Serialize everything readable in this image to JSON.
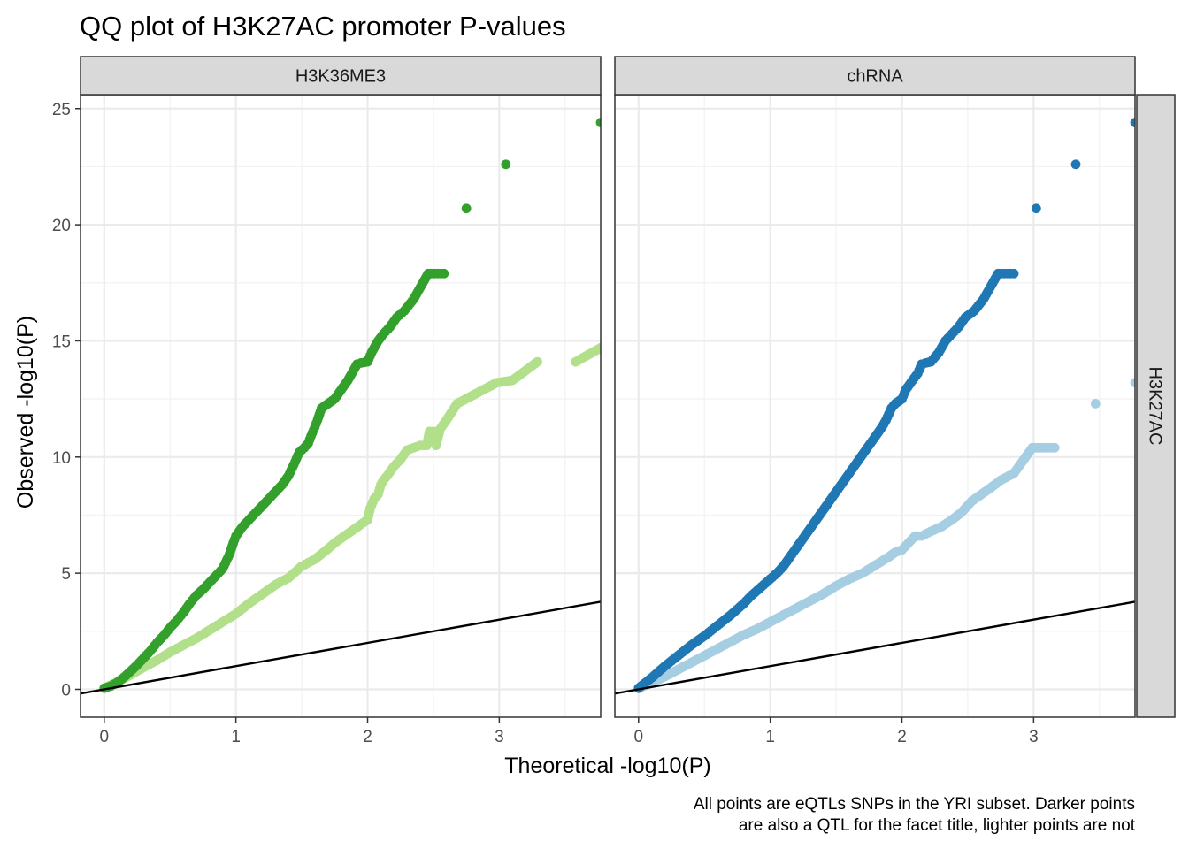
{
  "chart_data": {
    "type": "scatter",
    "title": "QQ plot of H3K27AC promoter P-values",
    "xlabel": "Theoretical -log10(P)",
    "ylabel": "Observed -log10(P)",
    "caption_lines": [
      "All points are eQTLs SNPs in the YRI subset. Darker points",
      "are also a QTL for the facet title, lighter points are not"
    ],
    "xlim": [
      -0.18,
      3.77
    ],
    "ylim": [
      -1.2,
      25.6
    ],
    "x_ticks": [
      0,
      1,
      2,
      3
    ],
    "y_ticks": [
      0,
      5,
      10,
      15,
      20,
      25
    ],
    "grid": true,
    "reference_line": {
      "intercept": 0,
      "slope": 1,
      "color": "#000000"
    },
    "row_strip": "H3K27AC",
    "panels": [
      {
        "strip": "H3K36ME3",
        "series": [
          {
            "role": "light",
            "color": "#b2df8a",
            "points": [
              [
                3.77,
                14.7
              ],
              [
                3.58,
                14.1
              ],
              [
                3.29,
                14.1
              ],
              [
                3.1,
                13.3
              ],
              [
                2.98,
                13.2
              ],
              [
                2.88,
                12.9
              ],
              [
                2.78,
                12.6
              ],
              [
                2.68,
                12.3
              ],
              [
                2.6,
                11.6
              ],
              [
                2.55,
                11.2
              ],
              [
                2.5,
                11.1
              ],
              [
                2.47,
                11.1
              ],
              [
                2.52,
                10.5
              ],
              [
                2.45,
                10.5
              ],
              [
                2.4,
                10.5
              ],
              [
                2.35,
                10.4
              ],
              [
                2.3,
                10.3
              ],
              [
                2.25,
                9.9
              ],
              [
                2.2,
                9.6
              ],
              [
                2.15,
                9.2
              ],
              [
                2.12,
                9.0
              ],
              [
                2.1,
                8.8
              ],
              [
                2.08,
                8.4
              ],
              [
                2.05,
                8.2
              ],
              [
                2.02,
                7.8
              ],
              [
                2.0,
                7.3
              ],
              [
                1.95,
                7.1
              ],
              [
                1.9,
                6.9
              ],
              [
                1.85,
                6.7
              ],
              [
                1.8,
                6.5
              ],
              [
                1.75,
                6.3
              ],
              [
                1.7,
                6.05
              ],
              [
                1.6,
                5.6
              ],
              [
                1.55,
                5.45
              ],
              [
                1.5,
                5.3
              ],
              [
                1.45,
                5.05
              ],
              [
                1.4,
                4.8
              ],
              [
                1.3,
                4.5
              ],
              [
                1.2,
                4.1
              ],
              [
                1.1,
                3.7
              ],
              [
                1.0,
                3.25
              ],
              [
                0.9,
                2.9
              ],
              [
                0.8,
                2.55
              ],
              [
                0.7,
                2.2
              ],
              [
                0.6,
                1.9
              ],
              [
                0.5,
                1.6
              ],
              [
                0.4,
                1.25
              ],
              [
                0.3,
                0.95
              ],
              [
                0.2,
                0.62
              ],
              [
                0.1,
                0.32
              ],
              [
                0.0,
                0.05
              ]
            ]
          },
          {
            "role": "dark",
            "color": "#33a02c",
            "points": [
              [
                3.77,
                24.4
              ],
              [
                3.05,
                22.6
              ],
              [
                2.75,
                20.7
              ],
              [
                2.58,
                17.9
              ],
              [
                2.46,
                17.9
              ],
              [
                2.35,
                16.8
              ],
              [
                2.28,
                16.3
              ],
              [
                2.22,
                16.0
              ],
              [
                2.17,
                15.6
              ],
              [
                2.12,
                15.3
              ],
              [
                2.08,
                15.0
              ],
              [
                2.03,
                14.5
              ],
              [
                2.0,
                14.1
              ],
              [
                1.95,
                14.05
              ],
              [
                1.92,
                14.0
              ],
              [
                1.88,
                13.6
              ],
              [
                1.85,
                13.3
              ],
              [
                1.8,
                12.9
              ],
              [
                1.75,
                12.5
              ],
              [
                1.7,
                12.3
              ],
              [
                1.65,
                12.1
              ],
              [
                1.62,
                11.6
              ],
              [
                1.6,
                11.3
              ],
              [
                1.57,
                10.9
              ],
              [
                1.55,
                10.6
              ],
              [
                1.52,
                10.4
              ],
              [
                1.48,
                10.2
              ],
              [
                1.45,
                9.8
              ],
              [
                1.4,
                9.2
              ],
              [
                1.35,
                8.8
              ],
              [
                1.3,
                8.5
              ],
              [
                1.25,
                8.2
              ],
              [
                1.2,
                7.9
              ],
              [
                1.15,
                7.6
              ],
              [
                1.1,
                7.3
              ],
              [
                1.05,
                7.0
              ],
              [
                1.0,
                6.6
              ],
              [
                0.98,
                6.3
              ],
              [
                0.95,
                5.8
              ],
              [
                0.9,
                5.2
              ],
              [
                0.85,
                4.9
              ],
              [
                0.8,
                4.6
              ],
              [
                0.75,
                4.3
              ],
              [
                0.7,
                4.05
              ],
              [
                0.65,
                3.7
              ],
              [
                0.6,
                3.3
              ],
              [
                0.55,
                2.95
              ],
              [
                0.5,
                2.65
              ],
              [
                0.45,
                2.3
              ],
              [
                0.4,
                2.0
              ],
              [
                0.35,
                1.65
              ],
              [
                0.3,
                1.35
              ],
              [
                0.25,
                1.05
              ],
              [
                0.2,
                0.78
              ],
              [
                0.15,
                0.52
              ],
              [
                0.1,
                0.3
              ],
              [
                0.05,
                0.14
              ],
              [
                0.0,
                0.05
              ]
            ]
          }
        ]
      },
      {
        "strip": "chRNA",
        "series": [
          {
            "role": "light",
            "color": "#a6cee3",
            "points": [
              [
                3.77,
                13.2
              ],
              [
                3.47,
                12.3
              ],
              [
                3.16,
                10.4
              ],
              [
                2.99,
                10.4
              ],
              [
                2.85,
                9.3
              ],
              [
                2.75,
                9.0
              ],
              [
                2.68,
                8.7
              ],
              [
                2.63,
                8.5
              ],
              [
                2.58,
                8.3
              ],
              [
                2.53,
                8.1
              ],
              [
                2.45,
                7.6
              ],
              [
                2.38,
                7.3
              ],
              [
                2.3,
                7.0
              ],
              [
                2.22,
                6.8
              ],
              [
                2.15,
                6.6
              ],
              [
                2.1,
                6.6
              ],
              [
                2.05,
                6.3
              ],
              [
                2.0,
                6.0
              ],
              [
                1.95,
                5.9
              ],
              [
                1.9,
                5.7
              ],
              [
                1.8,
                5.35
              ],
              [
                1.7,
                5.0
              ],
              [
                1.6,
                4.75
              ],
              [
                1.5,
                4.45
              ],
              [
                1.4,
                4.1
              ],
              [
                1.3,
                3.8
              ],
              [
                1.2,
                3.5
              ],
              [
                1.1,
                3.2
              ],
              [
                1.0,
                2.9
              ],
              [
                0.9,
                2.6
              ],
              [
                0.8,
                2.35
              ],
              [
                0.7,
                2.05
              ],
              [
                0.6,
                1.75
              ],
              [
                0.5,
                1.45
              ],
              [
                0.4,
                1.15
              ],
              [
                0.3,
                0.85
              ],
              [
                0.2,
                0.55
              ],
              [
                0.1,
                0.28
              ],
              [
                0.0,
                0.05
              ]
            ]
          },
          {
            "role": "dark",
            "color": "#1f78b4",
            "points": [
              [
                3.77,
                24.4
              ],
              [
                3.32,
                22.6
              ],
              [
                3.02,
                20.7
              ],
              [
                2.85,
                17.9
              ],
              [
                2.73,
                17.9
              ],
              [
                2.62,
                16.8
              ],
              [
                2.55,
                16.3
              ],
              [
                2.48,
                16.0
              ],
              [
                2.43,
                15.6
              ],
              [
                2.38,
                15.3
              ],
              [
                2.33,
                15.0
              ],
              [
                2.28,
                14.5
              ],
              [
                2.22,
                14.1
              ],
              [
                2.18,
                14.05
              ],
              [
                2.15,
                14.0
              ],
              [
                2.12,
                13.6
              ],
              [
                2.08,
                13.3
              ],
              [
                2.03,
                12.9
              ],
              [
                2.0,
                12.5
              ],
              [
                1.95,
                12.3
              ],
              [
                1.92,
                12.1
              ],
              [
                1.88,
                11.6
              ],
              [
                1.85,
                11.3
              ],
              [
                1.8,
                10.9
              ],
              [
                1.75,
                10.5
              ],
              [
                1.7,
                10.1
              ],
              [
                1.65,
                9.7
              ],
              [
                1.6,
                9.3
              ],
              [
                1.55,
                8.9
              ],
              [
                1.5,
                8.5
              ],
              [
                1.45,
                8.1
              ],
              [
                1.4,
                7.7
              ],
              [
                1.35,
                7.3
              ],
              [
                1.3,
                6.9
              ],
              [
                1.25,
                6.5
              ],
              [
                1.2,
                6.1
              ],
              [
                1.15,
                5.7
              ],
              [
                1.1,
                5.3
              ],
              [
                1.05,
                5.0
              ],
              [
                1.0,
                4.75
              ],
              [
                0.95,
                4.5
              ],
              [
                0.9,
                4.25
              ],
              [
                0.85,
                4.0
              ],
              [
                0.8,
                3.7
              ],
              [
                0.7,
                3.2
              ],
              [
                0.6,
                2.75
              ],
              [
                0.5,
                2.3
              ],
              [
                0.4,
                1.9
              ],
              [
                0.3,
                1.45
              ],
              [
                0.2,
                1.0
              ],
              [
                0.1,
                0.5
              ],
              [
                0.0,
                0.05
              ]
            ]
          }
        ]
      }
    ]
  }
}
